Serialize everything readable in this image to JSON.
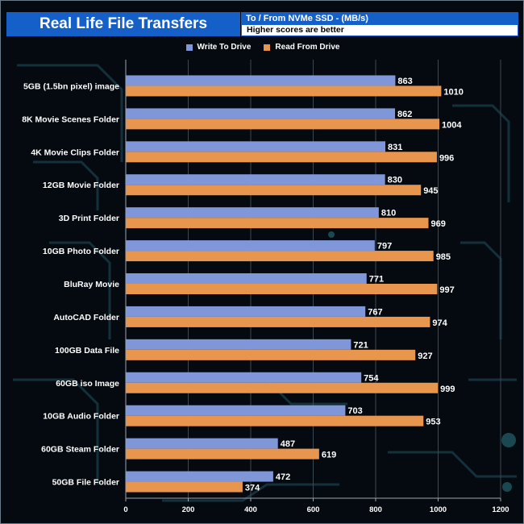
{
  "header": {
    "title": "Real Life File Transfers",
    "subtitle": "To /  From NVMe  SSD - (MB/s)",
    "note": "Higher scores are better"
  },
  "colors": {
    "write": "#7f96d8",
    "read": "#e8964e",
    "title_bg": "#1560c8"
  },
  "chart_data": {
    "type": "bar",
    "orientation": "horizontal",
    "categories": [
      "5GB (1.5bn pixel) image",
      "8K Movie Scenes Folder",
      "4K Movie Clips Folder",
      "12GB Movie Folder",
      "3D Print Folder",
      "10GB Photo Folder",
      "BluRay Movie",
      "AutoCAD Folder",
      "100GB Data File",
      "60GB iso Image",
      "10GB Audio Folder",
      "60GB Steam Folder",
      "50GB File Folder"
    ],
    "series": [
      {
        "name": "Write To  Drive",
        "values": [
          863,
          862,
          831,
          830,
          810,
          797,
          771,
          767,
          721,
          754,
          703,
          487,
          472
        ]
      },
      {
        "name": "Read From  Drive",
        "values": [
          1010,
          1004,
          996,
          945,
          969,
          985,
          997,
          974,
          927,
          999,
          953,
          619,
          374
        ]
      }
    ],
    "xlim": [
      0,
      1200
    ],
    "xticks": [
      "0",
      "200",
      "400",
      "600",
      "800",
      "1000",
      "1200"
    ],
    "legend": "top-center",
    "grid": true
  }
}
